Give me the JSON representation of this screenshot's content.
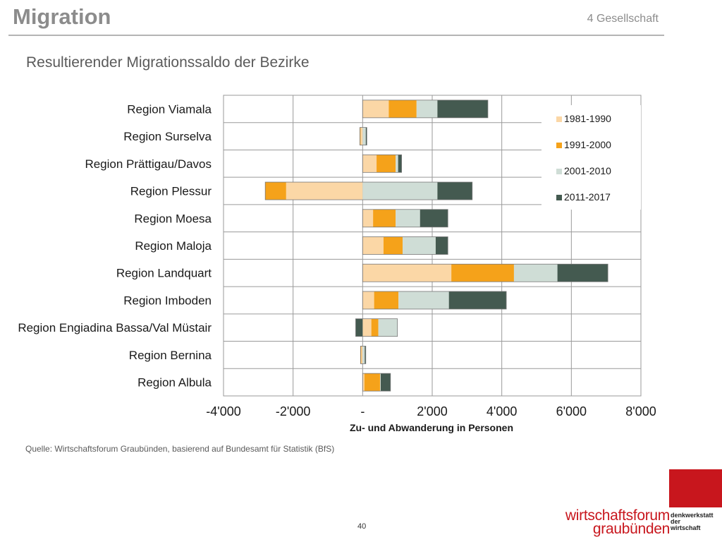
{
  "header": {
    "title": "Migration",
    "section": "4 Gesellschaft"
  },
  "subtitle": "Resultierender Migrationssaldo der Bezirke",
  "chart_data": {
    "type": "bar",
    "orientation": "horizontal",
    "stacked": true,
    "categories": [
      "Region Viamala",
      "Region Surselva",
      "Region Prättigau/Davos",
      "Region Plessur",
      "Region Moesa",
      "Region Maloja",
      "Region Landquart",
      "Region Imboden",
      "Region Engiadina Bassa/Val Müstair",
      "Region Bernina",
      "Region Albula"
    ],
    "series": [
      {
        "name": "1981-1990",
        "color": "#fbd7a6",
        "values": [
          750,
          -60,
          400,
          -2200,
          300,
          600,
          2550,
          330,
          250,
          -40,
          50
        ]
      },
      {
        "name": "1991-2000",
        "color": "#f5a21a",
        "values": [
          800,
          -20,
          550,
          -600,
          650,
          550,
          1800,
          700,
          200,
          -20,
          450
        ]
      },
      {
        "name": "2001-2010",
        "color": "#cfddd6",
        "values": [
          600,
          90,
          70,
          2150,
          700,
          950,
          1250,
          1450,
          550,
          60,
          20
        ]
      },
      {
        "name": "2011-2017",
        "color": "#445a50",
        "values": [
          1450,
          30,
          100,
          1000,
          800,
          350,
          1450,
          1650,
          -200,
          30,
          280
        ]
      }
    ],
    "xlabel": "Zu- und Abwanderung in Personen",
    "xlim": [
      -4000,
      8000
    ],
    "xticks": [
      -4000,
      -2000,
      0,
      2000,
      4000,
      6000,
      8000
    ],
    "xtick_labels": [
      "-4'000",
      "-2'000",
      "-",
      "2'000",
      "4'000",
      "6'000",
      "8'000"
    ],
    "grid": true,
    "legend_position": "top-right"
  },
  "source": "Quelle: Wirtschaftsforum Graubünden, basierend auf Bundesamt für Statistik (BfS)",
  "page_number": "40",
  "logo": {
    "line1": "wirtschaftsforum",
    "line2": "graubünden",
    "side": [
      "denkwerkstatt",
      "der",
      "wirtschaft"
    ]
  }
}
